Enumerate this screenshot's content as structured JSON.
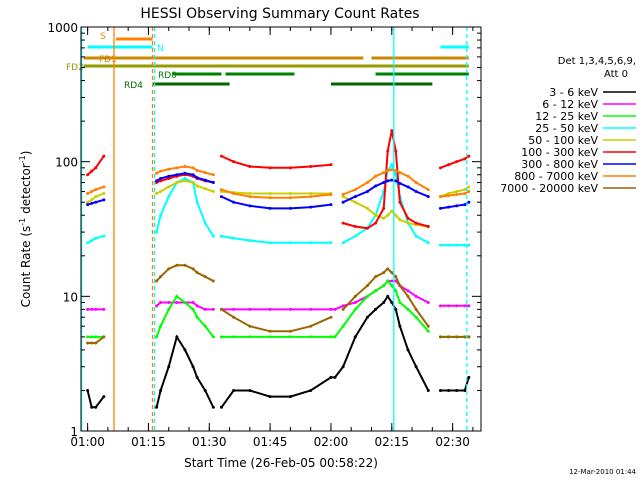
{
  "chart_data": {
    "type": "line",
    "title": "HESSI Observing Summary Count Rates",
    "xlabel": "Start Time (26-Feb-05 00:58:22)",
    "ylabel_main": "Count Rate (s",
    "ylabel_sup1": "-1",
    "ylabel_mid": " detector",
    "ylabel_sup2": "-1",
    "ylabel_end": ")",
    "timestamp": "12-Mar-2010 01:44",
    "y_scale": "log",
    "ylim": [
      1,
      1000
    ],
    "xlim": [
      "00:58:22",
      "02:37:00"
    ],
    "x_ticks": [
      "01:00",
      "01:15",
      "01:30",
      "01:45",
      "02:00",
      "02:15",
      "02:30"
    ],
    "y_ticks": [
      "1",
      "10",
      "100",
      "1000"
    ],
    "legend_header": [
      "Det 1,3,4,5,6,9,",
      "Att 0"
    ],
    "legend_placement": "right",
    "x_points": [
      "01:00",
      "01:01",
      "01:02",
      "01:04",
      "01:07",
      "01:17",
      "01:18",
      "01:20",
      "01:22",
      "01:24",
      "01:26",
      "01:27",
      "01:29",
      "01:31",
      "01:32",
      "01:33",
      "01:36",
      "01:40",
      "01:45",
      "01:50",
      "01:55",
      "02:00",
      "02:01",
      "02:03",
      "02:06",
      "02:09",
      "02:11",
      "02:13",
      "02:14",
      "02:15",
      "02:16",
      "02:17",
      "02:19",
      "02:21",
      "02:24",
      "02:26",
      "02:27",
      "02:29",
      "02:31",
      "02:33",
      "02:34"
    ],
    "series": [
      {
        "name": "3 - 6 keV",
        "color": "#000000",
        "values": [
          2,
          1.5,
          1.5,
          1.8,
          null,
          1.5,
          2,
          3,
          5,
          4,
          3,
          2.5,
          2,
          1.5,
          null,
          1.5,
          2,
          2,
          1.8,
          1.8,
          2,
          2.5,
          2.5,
          3,
          5,
          7,
          8,
          9,
          10,
          9,
          8,
          6,
          4,
          3,
          2,
          null,
          2,
          2,
          2,
          2,
          2.5
        ]
      },
      {
        "name": "6 - 12 keV",
        "color": "#ff00ff",
        "values": [
          8,
          8,
          8,
          8,
          null,
          8.5,
          9,
          9,
          9,
          9,
          9,
          8.5,
          8,
          8,
          null,
          8,
          8,
          8,
          8,
          8,
          8,
          8,
          8,
          8.5,
          9,
          10,
          11,
          12,
          13,
          13,
          13,
          12,
          11,
          10,
          9,
          null,
          8.5,
          8.5,
          8.5,
          8.5,
          8.5
        ]
      },
      {
        "name": "12 - 25 keV",
        "color": "#00ff00",
        "values": [
          5,
          5,
          5,
          5,
          null,
          5,
          6,
          8,
          10,
          9,
          8,
          7,
          6,
          5,
          null,
          5,
          5,
          5,
          5,
          5,
          5,
          5,
          5,
          6,
          8,
          10,
          11,
          12,
          13,
          12,
          11,
          9,
          8,
          7,
          5.5,
          null,
          5,
          5,
          5,
          5,
          5
        ]
      },
      {
        "name": "25 - 50 keV",
        "color": "#00ffff",
        "values": [
          25,
          26,
          27,
          28,
          null,
          30,
          40,
          55,
          70,
          75,
          70,
          50,
          35,
          28,
          null,
          28,
          27,
          26,
          25,
          25,
          25,
          25,
          null,
          25,
          28,
          32,
          40,
          60,
          85,
          95,
          80,
          55,
          35,
          28,
          25,
          null,
          24,
          24,
          24,
          24,
          24
        ]
      },
      {
        "name": "50 - 100 keV",
        "color": "#cccc00",
        "values": [
          50,
          52,
          55,
          58,
          null,
          58,
          60,
          65,
          70,
          72,
          70,
          66,
          63,
          60,
          null,
          60,
          59,
          58,
          58,
          58,
          58,
          58,
          null,
          55,
          50,
          45,
          40,
          38,
          40,
          43,
          40,
          37,
          35,
          34,
          33,
          null,
          55,
          58,
          60,
          62,
          65
        ]
      },
      {
        "name": "100 - 300 keV",
        "color": "#ff0000",
        "values": [
          80,
          85,
          90,
          110,
          null,
          70,
          72,
          75,
          78,
          80,
          78,
          75,
          72,
          70,
          null,
          110,
          100,
          92,
          90,
          90,
          92,
          95,
          null,
          35,
          33,
          32,
          35,
          45,
          120,
          170,
          120,
          50,
          38,
          35,
          33,
          null,
          90,
          95,
          100,
          105,
          110
        ]
      },
      {
        "name": "300 - 800 keV",
        "color": "#0000ff",
        "values": [
          48,
          49,
          50,
          52,
          null,
          72,
          75,
          78,
          80,
          82,
          80,
          76,
          73,
          70,
          null,
          55,
          50,
          47,
          45,
          45,
          46,
          48,
          null,
          50,
          55,
          60,
          66,
          70,
          72,
          73,
          72,
          69,
          65,
          60,
          55,
          null,
          45,
          46,
          47,
          48,
          50
        ]
      },
      {
        "name": "800 - 7000 keV",
        "color": "#ff8000",
        "values": [
          58,
          60,
          62,
          65,
          null,
          82,
          85,
          88,
          90,
          92,
          90,
          86,
          83,
          80,
          null,
          62,
          58,
          55,
          54,
          54,
          55,
          57,
          null,
          57,
          62,
          70,
          78,
          83,
          86,
          87,
          86,
          83,
          78,
          70,
          62,
          null,
          55,
          56,
          57,
          58,
          60
        ]
      },
      {
        "name": "7000 - 20000 keV",
        "color": "#996600",
        "values": [
          4.5,
          4.5,
          4.5,
          5,
          null,
          13,
          14,
          16,
          17,
          17,
          16,
          15,
          14,
          13,
          null,
          8,
          7,
          6,
          5.5,
          5.5,
          6,
          7,
          null,
          8,
          10,
          12,
          14,
          15,
          16,
          15,
          14,
          12,
          10,
          8,
          6,
          null,
          5,
          5,
          5,
          5,
          5
        ]
      }
    ],
    "bar_labels": [
      "S",
      "N",
      "FD1",
      "FD2",
      "RD0",
      "RD4"
    ],
    "flag_bars": [
      {
        "label": "S",
        "color": "#ff8000",
        "segments": [
          [
            "01:07",
            "01:16"
          ]
        ]
      },
      {
        "label": "N",
        "color": "#00ffff",
        "segments": [
          [
            "01:00",
            "01:16"
          ],
          [
            "02:27",
            "02:34"
          ]
        ]
      },
      {
        "label": "FD1",
        "color": "#cc8800",
        "segments": [
          [
            "00:59",
            "02:08"
          ],
          [
            "02:10",
            "02:34"
          ]
        ]
      },
      {
        "label": "FD2",
        "color": "#999900",
        "segments": [
          [
            "00:59",
            "02:34"
          ]
        ]
      },
      {
        "label": "RD0",
        "color": "#008000",
        "segments": [
          [
            "01:21",
            "01:33"
          ],
          [
            "01:34",
            "01:51"
          ],
          [
            "02:11",
            "02:34"
          ]
        ]
      },
      {
        "label": "RD4",
        "color": "#006600",
        "segments": [
          [
            "01:16",
            "01:35"
          ],
          [
            "02:00",
            "02:25"
          ]
        ]
      }
    ],
    "vlines": [
      {
        "x": "00:58:30",
        "color": "#00ffff",
        "style": "solid"
      },
      {
        "x": "01:06:30",
        "color": "#ff8000",
        "style": "solid"
      },
      {
        "x": "01:16:00",
        "color": "#ff8000",
        "style": "dashed"
      },
      {
        "x": "01:16:30",
        "color": "#00ffff",
        "style": "dashed"
      },
      {
        "x": "02:15:30",
        "color": "#00ffff",
        "style": "solid"
      },
      {
        "x": "02:33:30",
        "color": "#00ffff",
        "style": "dashed"
      }
    ]
  }
}
